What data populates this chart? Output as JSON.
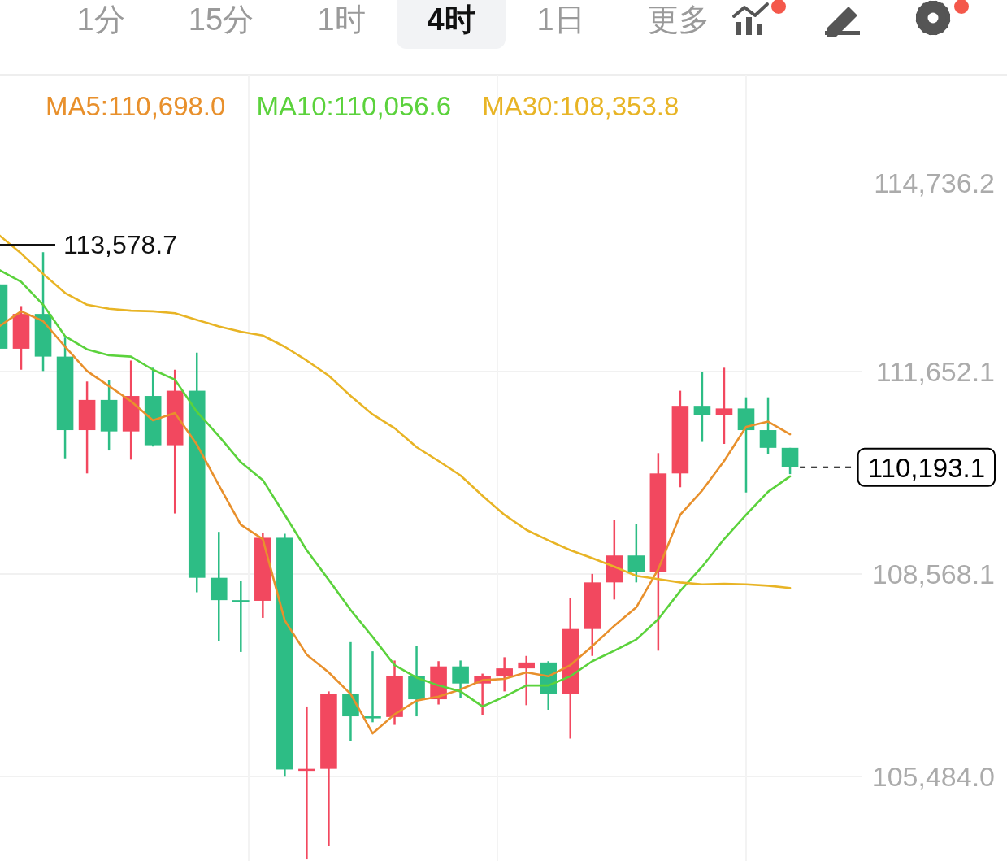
{
  "chart_data": {
    "type": "candlestick",
    "annotations": [
      "1分",
      "15分",
      "1时",
      "4时",
      "1日",
      "更多",
      "113,578.7"
    ],
    "categories": [
      null,
      null,
      null,
      null,
      null,
      null,
      null,
      null,
      null,
      null,
      null,
      null,
      null,
      null,
      null,
      null,
      null,
      null,
      null,
      null,
      null,
      null,
      null,
      null,
      null,
      null,
      null,
      null,
      null,
      null,
      null,
      null,
      null,
      null,
      null,
      null,
      null
    ],
    "ohlc": [
      [
        112980,
        112980,
        112000,
        112000
      ],
      [
        112000,
        112650,
        111680,
        112530
      ],
      [
        112530,
        113470,
        111660,
        111880
      ],
      [
        111880,
        112170,
        110330,
        110760
      ],
      [
        110760,
        111500,
        110100,
        111220
      ],
      [
        111220,
        111520,
        110450,
        110740
      ],
      [
        110740,
        111820,
        110310,
        111280
      ],
      [
        111280,
        111710,
        110510,
        110530
      ],
      [
        110530,
        111680,
        109490,
        111360
      ],
      [
        111360,
        111940,
        108290,
        108510
      ],
      [
        108510,
        109210,
        107540,
        108170
      ],
      [
        108170,
        108460,
        107380,
        108160
      ],
      [
        108160,
        109190,
        107900,
        109120
      ],
      [
        109120,
        109180,
        105480,
        105590
      ],
      [
        105590,
        106550,
        104220,
        105600
      ],
      [
        105600,
        106780,
        104430,
        106740
      ],
      [
        106740,
        107530,
        106020,
        106400
      ],
      [
        106400,
        107390,
        106310,
        106390
      ],
      [
        106390,
        107250,
        106270,
        107020
      ],
      [
        107020,
        107470,
        106400,
        106660
      ],
      [
        106660,
        107240,
        106580,
        107160
      ],
      [
        107160,
        107250,
        106680,
        106900
      ],
      [
        106900,
        107050,
        106420,
        107020
      ],
      [
        107020,
        107300,
        106780,
        107130
      ],
      [
        107130,
        107320,
        106570,
        107220
      ],
      [
        107220,
        107240,
        106500,
        106740
      ],
      [
        106740,
        108200,
        106060,
        107730
      ],
      [
        107730,
        108570,
        107320,
        108440
      ],
      [
        108440,
        109390,
        108180,
        108850
      ],
      [
        108850,
        109330,
        108440,
        108600
      ],
      [
        108600,
        110410,
        107400,
        110100
      ],
      [
        110100,
        111360,
        109890,
        111130
      ],
      [
        111130,
        111650,
        110580,
        110990
      ],
      [
        110990,
        111710,
        110550,
        111090
      ],
      [
        111090,
        111260,
        109810,
        110760
      ],
      [
        110760,
        111260,
        110390,
        110490
      ],
      [
        110490,
        110490,
        110090,
        110193.1
      ]
    ],
    "colors": [
      "#2dbd85",
      "#f2485f",
      "#2dbd85",
      "#2dbd85",
      "#f2485f",
      "#2dbd85",
      "#f2485f",
      "#2dbd85",
      "#f2485f",
      "#2dbd85",
      "#2dbd85",
      "#2dbd85",
      "#f2485f",
      "#2dbd85",
      "#f2485f",
      "#f2485f",
      "#2dbd85",
      "#2dbd85",
      "#f2485f",
      "#2dbd85",
      "#f2485f",
      "#2dbd85",
      "#f2485f",
      "#f2485f",
      "#f2485f",
      "#2dbd85",
      "#f2485f",
      "#f2485f",
      "#f2485f",
      "#2dbd85",
      "#f2485f",
      "#f2485f",
      "#2dbd85",
      "#f2485f",
      "#2dbd85",
      "#2dbd85",
      "#2dbd85"
    ],
    "series": [
      {
        "name": "MA5:110,698.0",
        "type": "line",
        "color": "#e8902c",
        "values": [
          112340,
          112570,
          112420,
          112030,
          111660,
          111430,
          111200,
          110910,
          111020,
          110540,
          109920,
          109320,
          109100,
          107860,
          107340,
          107070,
          106740,
          106140,
          106430,
          106640,
          106700,
          106810,
          106950,
          106970,
          107070,
          107010,
          107180,
          107470,
          107780,
          108060,
          108640,
          109470,
          109840,
          110290,
          110810,
          110890,
          110698.0
        ]
      },
      {
        "name": "MA10:110,056.6",
        "type": "line",
        "color": "#5bd23c",
        "values": [
          113200,
          113020,
          112670,
          112190,
          111990,
          111900,
          111880,
          111680,
          111530,
          111040,
          110670,
          110270,
          110000,
          109470,
          108930,
          108480,
          108020,
          107610,
          107180,
          106990,
          106870,
          106780,
          106550,
          106700,
          106870,
          106870,
          107010,
          107240,
          107400,
          107570,
          107880,
          108310,
          108680,
          109100,
          109470,
          109820,
          110056.6
        ]
      },
      {
        "name": "MA30:108,353.8",
        "type": "line",
        "color": "#e8b425",
        "values": [
          113730,
          113450,
          113140,
          112850,
          112670,
          112610,
          112580,
          112570,
          112540,
          112440,
          112340,
          112260,
          112200,
          112030,
          111820,
          111590,
          111280,
          111000,
          110790,
          110500,
          110290,
          110070,
          109760,
          109470,
          109240,
          109080,
          108930,
          108810,
          108680,
          108540,
          108490,
          108440,
          108410,
          108420,
          108410,
          108390,
          108353.8
        ]
      }
    ],
    "ylim": [
      104196,
      114736.2
    ],
    "yticks": [
      {
        "value": 105484.0,
        "label": "105,484.0"
      },
      {
        "value": 108568.1,
        "label": "108,568.1"
      },
      {
        "value": 111652.1,
        "label": "111,652.1"
      },
      {
        "value": 114736.2,
        "label": "114,736.2"
      }
    ],
    "grid": true,
    "legend": "top",
    "ref_lines": [
      {
        "axis": "y",
        "value": 110193.1,
        "label": "110,193.1",
        "color": "#000000",
        "line_style": "dashed"
      }
    ]
  }
}
